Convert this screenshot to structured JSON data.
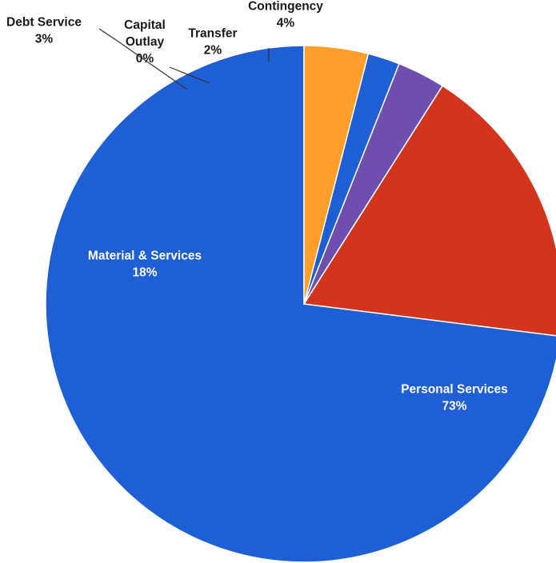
{
  "chart_data": {
    "type": "pie",
    "slices": [
      {
        "name": "Personal Services",
        "value_label": "73%",
        "value": 73.0,
        "color": "#1F5FD6",
        "text": "light"
      },
      {
        "name": "Material & Services",
        "value_label": "18%",
        "value": 18.0,
        "color": "#D2341C",
        "text": "light"
      },
      {
        "name": "Debt Service",
        "value_label": "3%",
        "value": 3.0,
        "color": "#6E4FAE",
        "text": "dark"
      },
      {
        "name": "Capital Outlay",
        "value_label": "0%",
        "value": 0.0,
        "color": "#2E9E42",
        "text": "dark"
      },
      {
        "name": "Transfer",
        "value_label": "2%",
        "value": 2.0,
        "color": "#1F5FD6",
        "text": "dark"
      },
      {
        "name": "Contingency",
        "value_label": "4%",
        "value": 4.0,
        "color": "#FF9F2A",
        "text": "dark"
      }
    ],
    "start": "12 o'clock",
    "direction": "counterclockwise",
    "legend": "none",
    "title": ""
  }
}
